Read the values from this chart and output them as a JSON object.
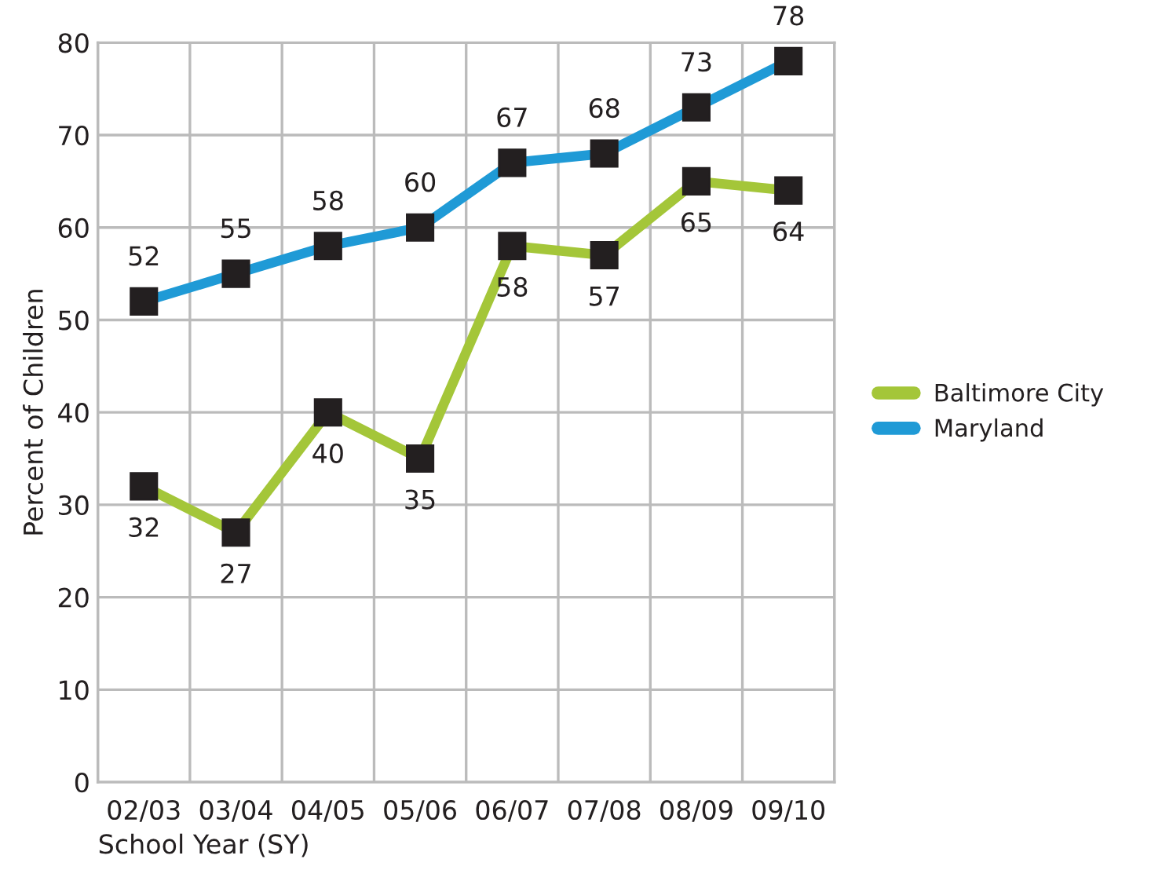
{
  "chart_data": {
    "type": "line",
    "xlabel": "School Year (SY)",
    "ylabel": "Percent of Children",
    "categories": [
      "02/03",
      "03/04",
      "04/05",
      "05/06",
      "06/07",
      "07/08",
      "08/09",
      "09/10"
    ],
    "series": [
      {
        "name": "Baltimore City",
        "color": "#a4c639",
        "values": [
          32,
          27,
          40,
          35,
          58,
          57,
          65,
          64
        ]
      },
      {
        "name": "Maryland",
        "color": "#1f9ad6",
        "values": [
          52,
          55,
          58,
          60,
          67,
          68,
          73,
          78
        ]
      }
    ],
    "ylim": [
      0,
      80
    ],
    "yticks": [
      0,
      10,
      20,
      30,
      40,
      50,
      60,
      70,
      80
    ],
    "grid": true,
    "legend": "right",
    "marker": "square",
    "line_style": "solid",
    "data_labels": true
  }
}
